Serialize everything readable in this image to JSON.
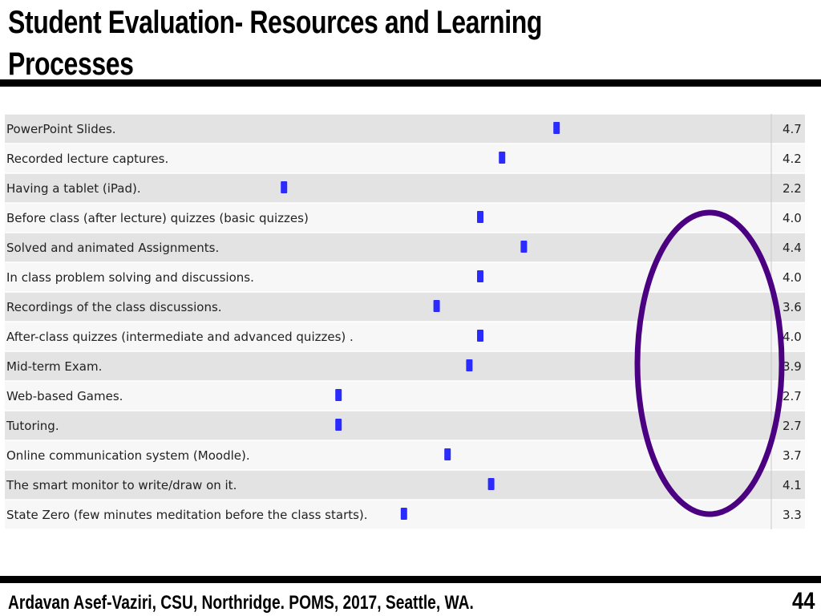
{
  "slide": {
    "title": "Student Evaluation- Resources and Learning Processes",
    "footer": "Ardavan  Asef-Vaziri, CSU, Northridge. POMS, 2017, Seattle, WA.",
    "page_number": "44"
  },
  "colors": {
    "marker": "#2b2bff",
    "circle": "#4b0082",
    "row_odd": "#e3e3e3",
    "row_even": "#f7f7f7"
  },
  "chart_data": {
    "type": "scatter",
    "title": "",
    "xlabel": "",
    "ylabel": "",
    "xlim": [
      1,
      5
    ],
    "grid": false,
    "categories": [
      "PowerPoint Slides.",
      "Recorded lecture captures.",
      "Having a tablet (iPad).",
      "Before class (after lecture) quizzes (basic quizzes)",
      "Solved and animated Assignments.",
      "In class problem solving and discussions.",
      "Recordings of the class discussions.",
      "After-class quizzes (intermediate and advanced quizzes) .",
      "Mid-term Exam.",
      "Web-based Games.",
      "Tutoring.",
      "Online communication system (Moodle).",
      "The smart monitor to write/draw on it.",
      "State Zero (few minutes meditation before the class starts)."
    ],
    "values": [
      4.7,
      4.2,
      2.2,
      4.0,
      4.4,
      4.0,
      3.6,
      4.0,
      3.9,
      2.7,
      2.7,
      3.7,
      4.1,
      3.3
    ],
    "value_labels": [
      "4.7",
      "4.2",
      "2.2",
      "4.0",
      "4.4",
      "4.0",
      "3.6",
      "4.0",
      "3.9",
      "2.7",
      "2.7",
      "3.7",
      "4.1",
      "3.3"
    ]
  }
}
